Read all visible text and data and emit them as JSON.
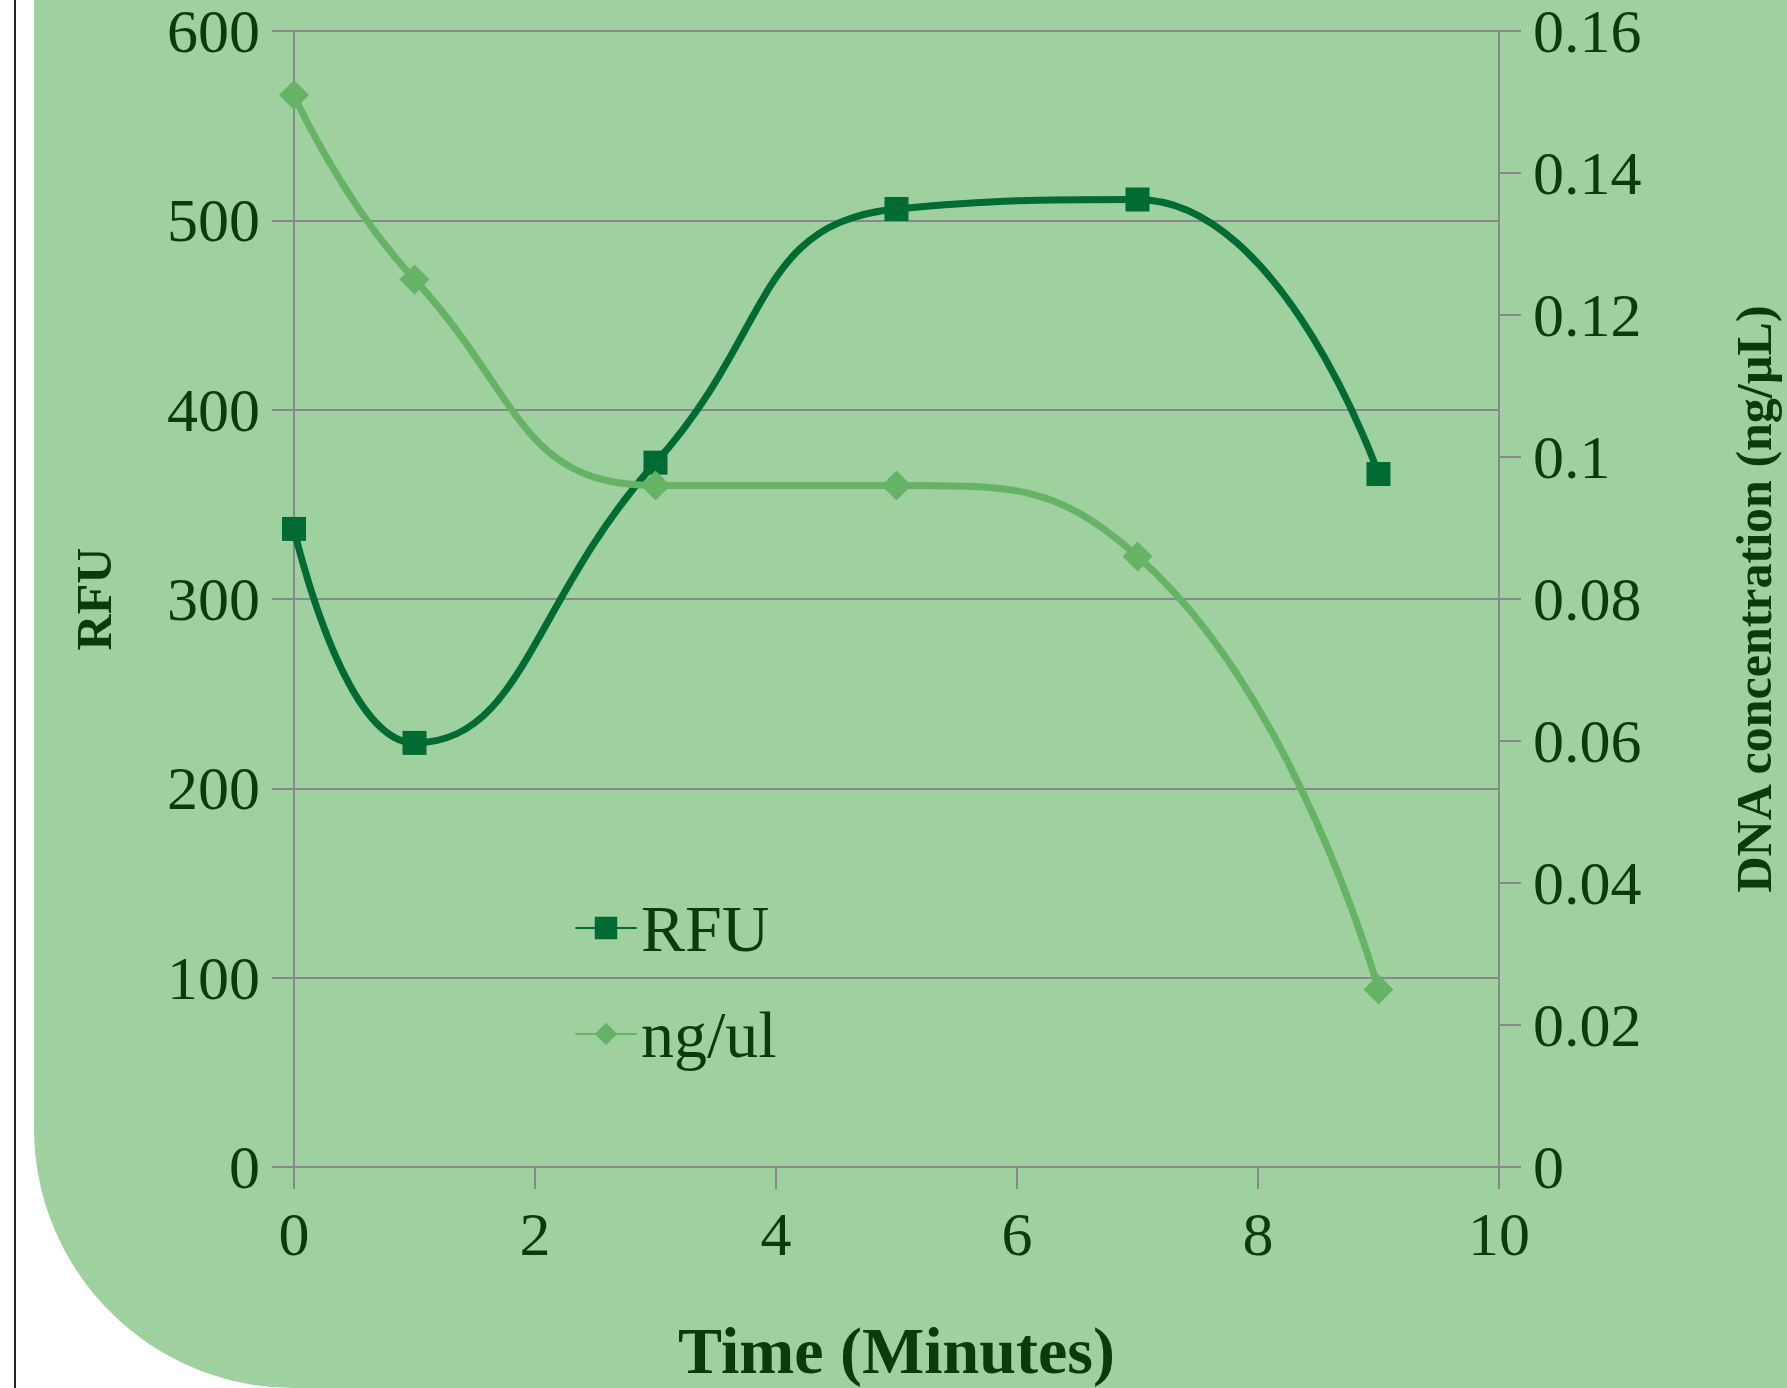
{
  "chart_data": {
    "type": "line",
    "xlabel": "Time (Minutes)",
    "ylabel": "RFU",
    "y2label": "DNA concentration (ng/µL)",
    "x": [
      0,
      1,
      3,
      5,
      7,
      9
    ],
    "series": [
      {
        "name": "RFU",
        "color": "#006b33",
        "marker": "square",
        "values": [
          337,
          224,
          372,
          506,
          511,
          366
        ]
      },
      {
        "name": "ng/ul",
        "color": "#66b366",
        "marker": "diamond",
        "axis": "y2",
        "values": [
          0.151,
          0.125,
          0.096,
          0.096,
          0.086,
          0.025
        ]
      }
    ],
    "xlim": [
      0,
      10
    ],
    "xticks": [
      0,
      2,
      4,
      6,
      8,
      10
    ],
    "ylim": [
      0,
      600
    ],
    "yticks": [
      0,
      100,
      200,
      300,
      400,
      500,
      600
    ],
    "y2lim": [
      0,
      0.16
    ],
    "y2ticks": [
      0,
      0.02,
      0.04,
      0.06,
      0.08,
      0.1,
      0.12,
      0.14,
      0.16
    ],
    "grid": "y",
    "legend": "bottom left",
    "line_style": "solid"
  }
}
